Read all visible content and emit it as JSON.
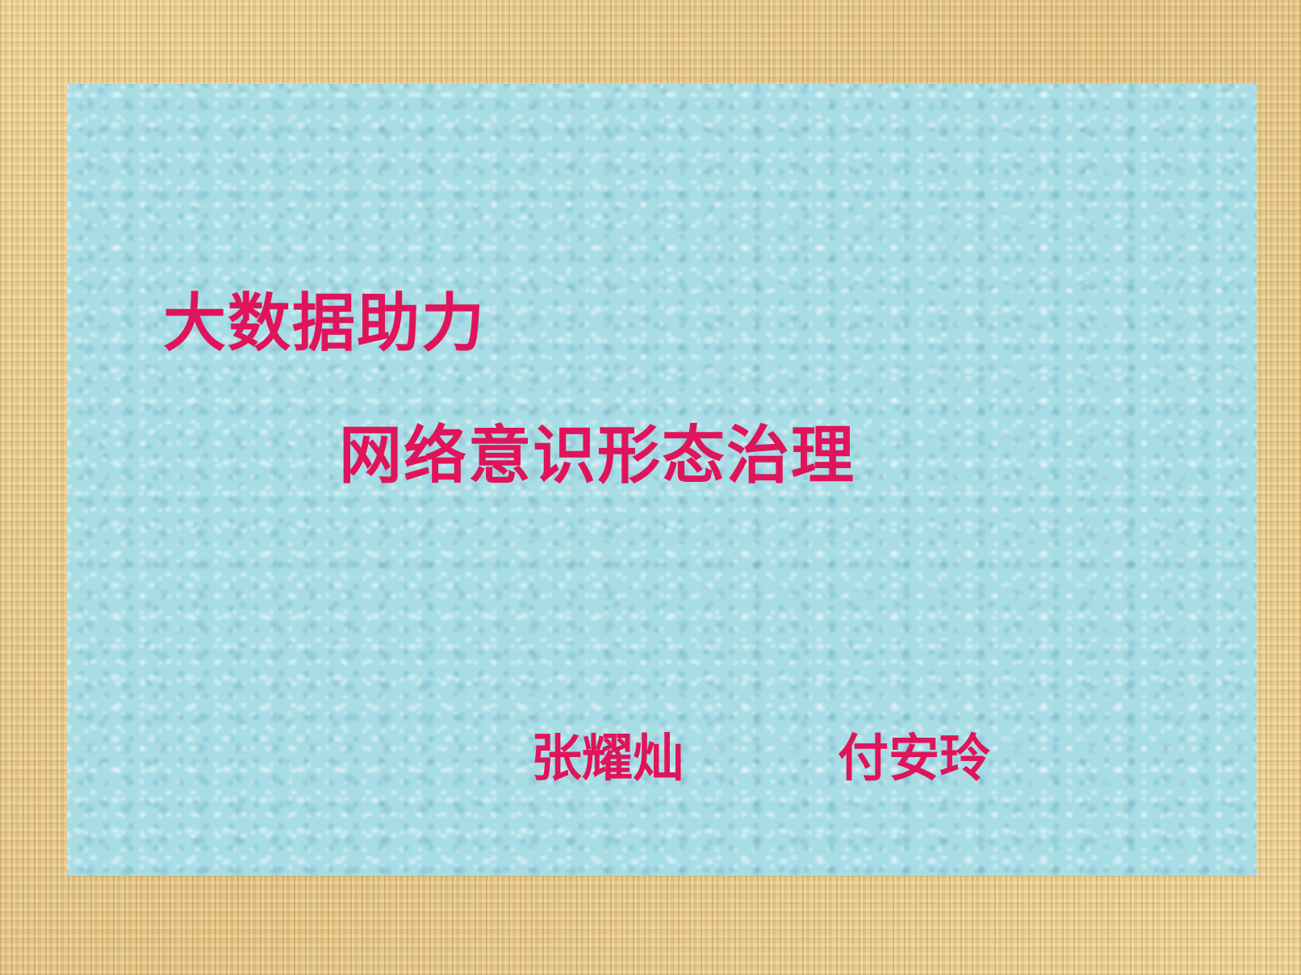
{
  "slide": {
    "title_line_1": "大数据助力",
    "title_line_2": "网络意识形态治理",
    "authors": [
      "张耀灿",
      "付安玲"
    ]
  },
  "colors": {
    "text": "#e0145a",
    "panel": "#a8dde6",
    "frame": "#e6c98d"
  }
}
